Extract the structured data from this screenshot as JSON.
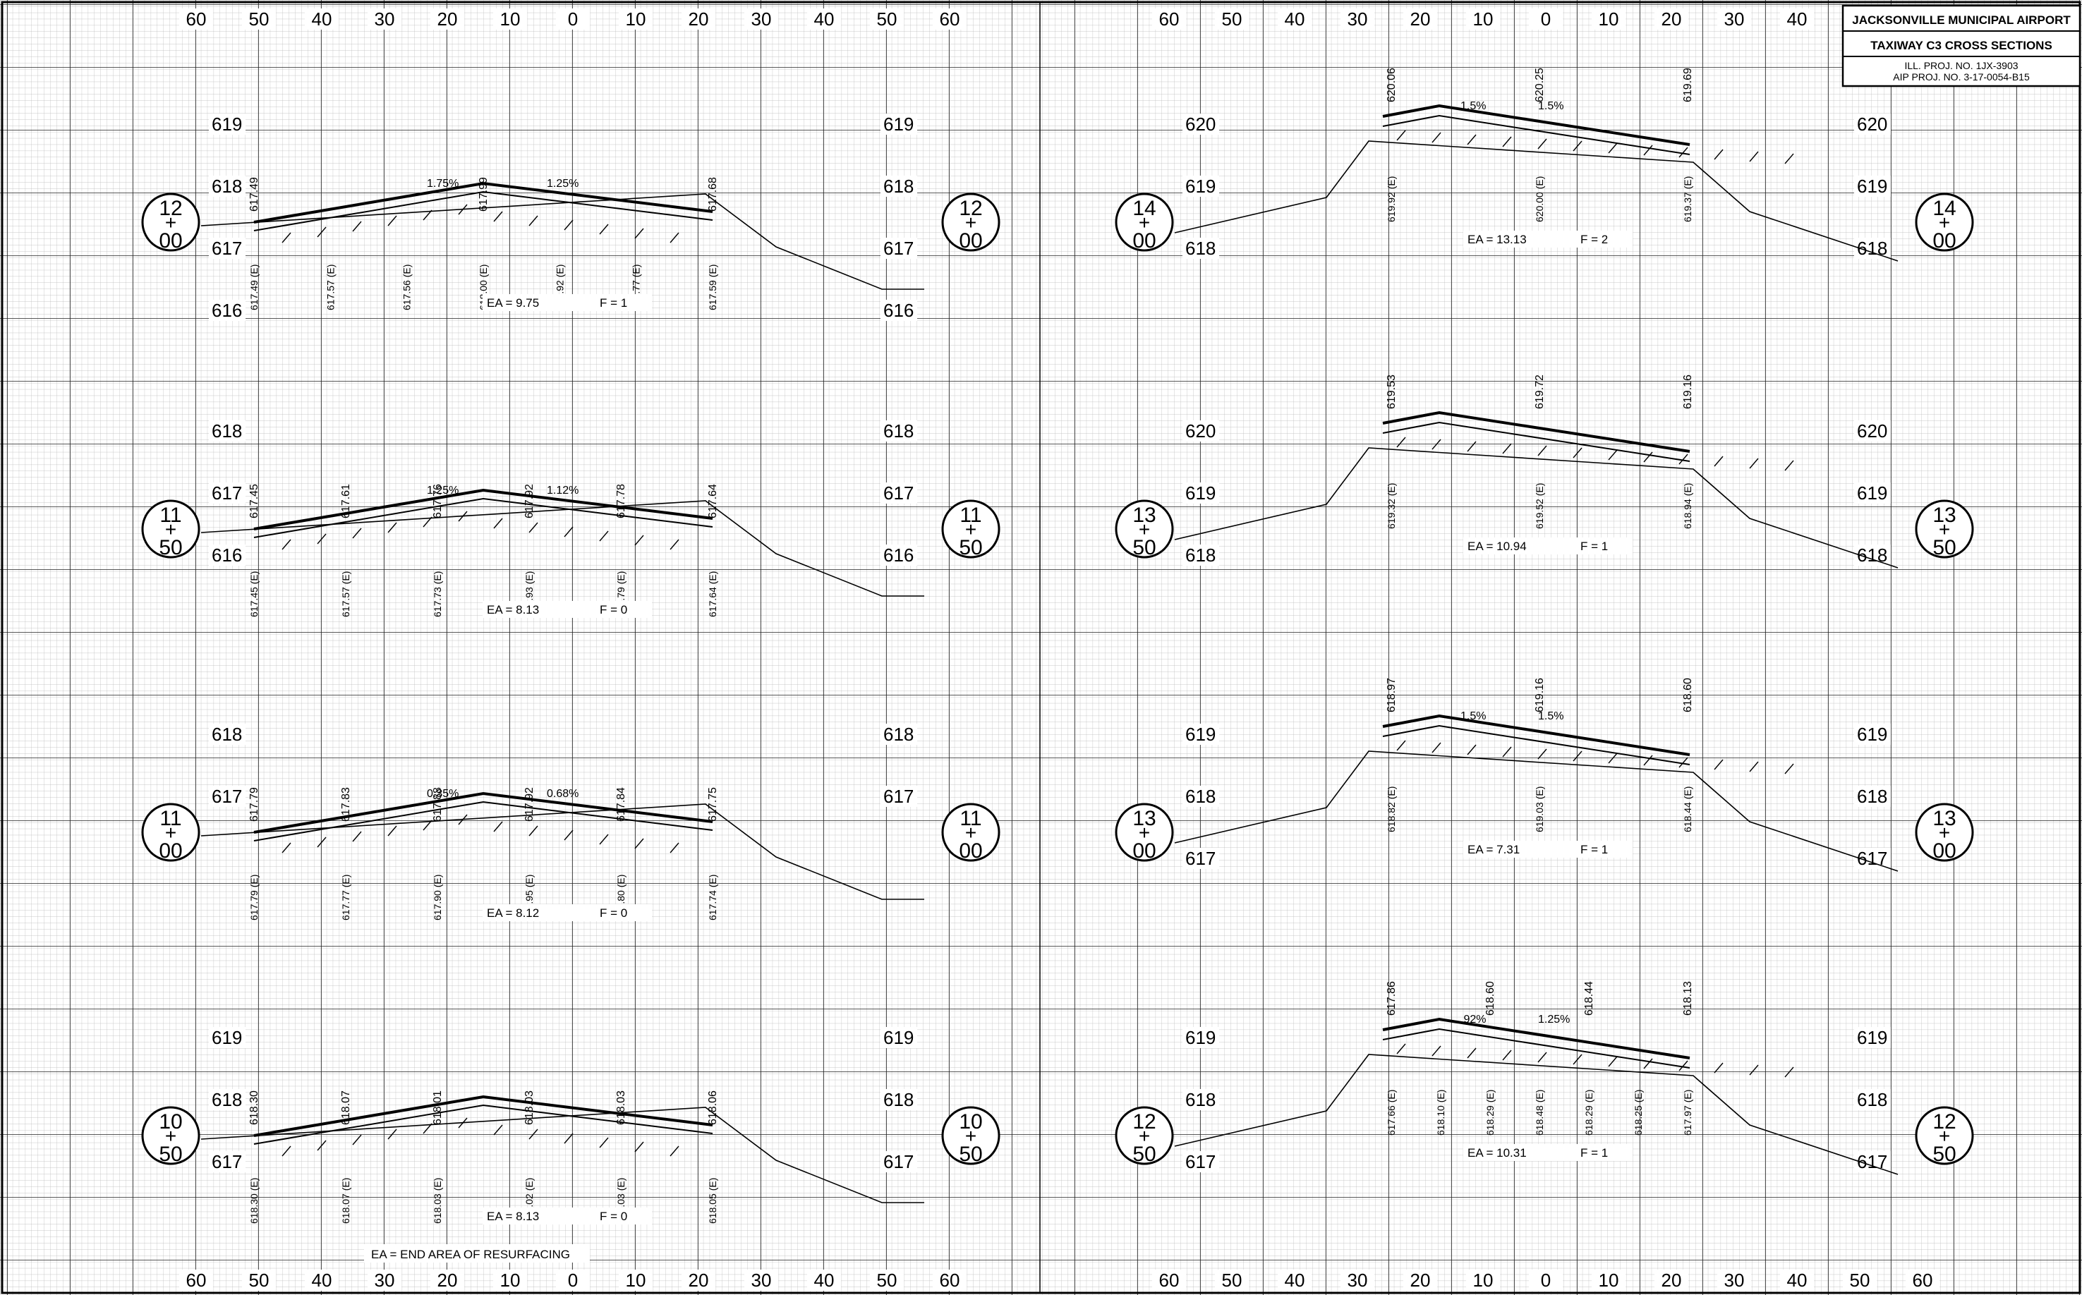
{
  "title_block": {
    "airport": "JACKSONVILLE MUNICIPAL AIRPORT",
    "sheet_title": "TAXIWAY C3 CROSS SECTIONS",
    "ill_proj": "ILL. PROJ. NO. 1JX-3903",
    "aip_proj": "AIP PROJ. NO. 3-17-0054-B15"
  },
  "legend": {
    "note": "EA = END AREA OF RESURFACING"
  },
  "offset_labels": [
    "60",
    "50",
    "40",
    "30",
    "20",
    "10",
    "0",
    "10",
    "20",
    "30",
    "40",
    "50",
    "60"
  ],
  "sections": [
    {
      "col": 0,
      "row": 0,
      "station": {
        "top": "12",
        "mid": "+",
        "bot": "00"
      },
      "elev_labels": [
        "619",
        "618",
        "617",
        "616"
      ],
      "elev_right": [
        "619",
        "618",
        "617",
        "616"
      ],
      "surface_labels": [
        "617.49",
        "617.99",
        "617.68"
      ],
      "existing_labels": [
        "617.49 (E)",
        "617.57 (E)",
        "617.56 (E)",
        "618.00 (E)",
        "617.92 (E)",
        "617.77 (E)",
        "617.59 (E)"
      ],
      "slopes": [
        "1.75%",
        "1.25%"
      ],
      "ea_label": "EA = 9.75",
      "f_label": "F = 1"
    },
    {
      "col": 0,
      "row": 1,
      "station": {
        "top": "11",
        "mid": "+",
        "bot": "50"
      },
      "elev_labels": [
        "618",
        "617",
        "616"
      ],
      "elev_right": [
        "618",
        "617",
        "616"
      ],
      "surface_labels": [
        "617.45",
        "617.61",
        "617.76",
        "617.92",
        "617.78",
        "617.64"
      ],
      "existing_labels": [
        "617.45 (E)",
        "617.57 (E)",
        "617.73 (E)",
        "617.93 (E)",
        "617.79 (E)",
        "617.64 (E)"
      ],
      "slopes": [
        "1.25%",
        "1.12%"
      ],
      "ea_label": "EA = 8.13",
      "f_label": "F = 0"
    },
    {
      "col": 0,
      "row": 2,
      "station": {
        "top": "11",
        "mid": "+",
        "bot": "00"
      },
      "elev_labels": [
        "618",
        "617"
      ],
      "elev_right": [
        "618",
        "617"
      ],
      "surface_labels": [
        "617.79",
        "617.83",
        "617.88",
        "617.92",
        "617.84",
        "617.75"
      ],
      "existing_labels": [
        "617.79 (E)",
        "617.77 (E)",
        "617.90 (E)",
        "617.95 (E)",
        "617.80 (E)",
        "617.74 (E)"
      ],
      "slopes": [
        "0.35%",
        "0.68%"
      ],
      "ea_label": "EA = 8.12",
      "f_label": "F = 0"
    },
    {
      "col": 0,
      "row": 3,
      "station": {
        "top": "10",
        "mid": "+",
        "bot": "50"
      },
      "elev_labels": [
        "619",
        "618",
        "617"
      ],
      "elev_right": [
        "619",
        "618",
        "617"
      ],
      "surface_labels": [
        "618.30",
        "618.07",
        "618.01",
        "618.03",
        "618.03",
        "618.06"
      ],
      "existing_labels": [
        "618.30 (E)",
        "618.07 (E)",
        "618.03 (E)",
        "618.02 (E)",
        "618.03 (E)",
        "618.05 (E)"
      ],
      "slopes": [],
      "ea_label": "EA = 8.13",
      "f_label": "F = 0"
    },
    {
      "col": 1,
      "row": 0,
      "station": {
        "top": "14",
        "mid": "+",
        "bot": "00"
      },
      "elev_labels": [
        "620",
        "619",
        "618"
      ],
      "elev_right": [
        "620",
        "619",
        "618"
      ],
      "surface_labels": [
        "620.06",
        "620.25",
        "619.69"
      ],
      "existing_labels": [
        "619.92 (E)",
        "620.00 (E)",
        "619.37 (E)"
      ],
      "slopes": [
        "1.5%",
        "1.5%"
      ],
      "ea_label": "EA = 13.13",
      "f_label": "F = 2"
    },
    {
      "col": 1,
      "row": 1,
      "station": {
        "top": "13",
        "mid": "+",
        "bot": "50"
      },
      "elev_labels": [
        "620",
        "619",
        "618"
      ],
      "elev_right": [
        "620",
        "619",
        "618"
      ],
      "surface_labels": [
        "619.53",
        "619.72",
        "619.16"
      ],
      "existing_labels": [
        "619.32 (E)",
        "619.52 (E)",
        "618.94 (E)"
      ],
      "slopes": [],
      "ea_label": "EA = 10.94",
      "f_label": "F = 1"
    },
    {
      "col": 1,
      "row": 2,
      "station": {
        "top": "13",
        "mid": "+",
        "bot": "00"
      },
      "elev_labels": [
        "619",
        "618",
        "617"
      ],
      "elev_right": [
        "619",
        "618",
        "617"
      ],
      "surface_labels": [
        "618.97",
        "619.16",
        "618.60"
      ],
      "existing_labels": [
        "618.82 (E)",
        "619.03 (E)",
        "618.44 (E)"
      ],
      "slopes": [
        "1.5%",
        "1.5%"
      ],
      "ea_label": "EA = 7.31",
      "f_label": "F = 1"
    },
    {
      "col": 1,
      "row": 3,
      "station": {
        "top": "12",
        "mid": "+",
        "bot": "50"
      },
      "elev_labels": [
        "619",
        "618",
        "617"
      ],
      "elev_right": [
        "619",
        "618",
        "617"
      ],
      "surface_labels": [
        "617.86",
        "618.60",
        "618.44",
        "618.13"
      ],
      "existing_labels": [
        "617.66 (E)",
        "618.10 (E)",
        "618.29 (E)",
        "618.48 (E)",
        "618.29 (E)",
        "618.25 (E)",
        "617.97 (E)"
      ],
      "slopes": [
        ".92%",
        "1.25%"
      ],
      "ea_label": "EA = 10.31",
      "f_label": "F = 1"
    }
  ]
}
